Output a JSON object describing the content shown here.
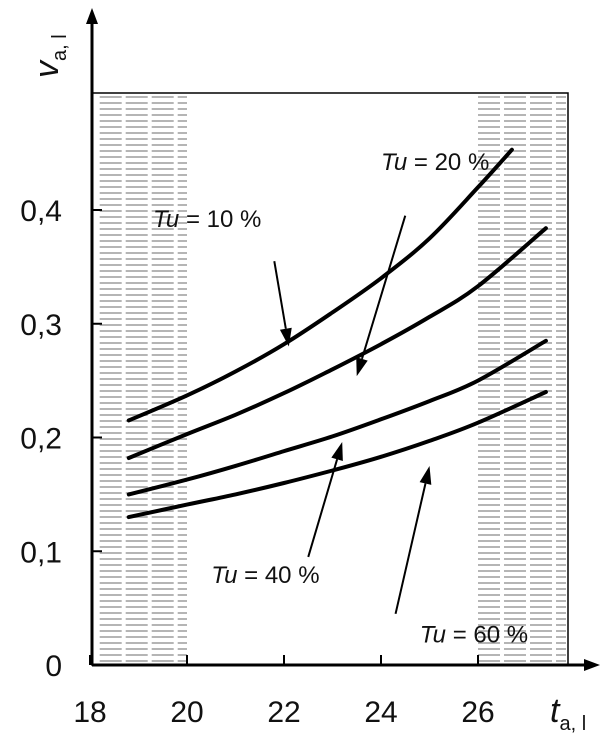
{
  "chart_data": {
    "type": "line",
    "xlabel": "t",
    "xlabel_sub": "a, l",
    "ylabel": "v",
    "ylabel_sub": "a, l",
    "xlim": [
      17.8,
      28.5
    ],
    "ylim": [
      0,
      0.5
    ],
    "x_ticks": [
      18,
      20,
      22,
      24,
      26
    ],
    "x_tick_labels": [
      "18",
      "20",
      "22",
      "24",
      "26"
    ],
    "y_ticks": [
      0,
      0.1,
      0.2,
      0.3,
      0.4
    ],
    "y_tick_labels": [
      "0",
      "0,1",
      "0,2",
      "0,3",
      "0,4"
    ],
    "shaded_bands": [
      [
        18.2,
        20.0
      ],
      [
        26.0,
        28.0
      ]
    ],
    "grid": false,
    "series": [
      {
        "name": "Tu = 10 %",
        "x": [
          18.8,
          20,
          21,
          22,
          23,
          24,
          25,
          26,
          26.7
        ],
        "y": [
          0.215,
          0.237,
          0.258,
          0.282,
          0.31,
          0.34,
          0.375,
          0.42,
          0.453
        ]
      },
      {
        "name": "Tu = 20 %",
        "x": [
          18.8,
          20,
          21,
          22,
          23,
          24,
          25,
          26,
          27.4
        ],
        "y": [
          0.182,
          0.203,
          0.22,
          0.239,
          0.26,
          0.282,
          0.306,
          0.333,
          0.384
        ]
      },
      {
        "name": "Tu = 40 %",
        "x": [
          18.8,
          20,
          21,
          22,
          23,
          24,
          25,
          26,
          27.4
        ],
        "y": [
          0.15,
          0.163,
          0.175,
          0.188,
          0.201,
          0.216,
          0.232,
          0.25,
          0.285
        ]
      },
      {
        "name": "Tu = 60 %",
        "x": [
          18.8,
          20,
          21,
          22,
          23,
          24,
          25,
          26,
          27.4
        ],
        "y": [
          0.13,
          0.141,
          0.15,
          0.16,
          0.171,
          0.183,
          0.197,
          0.213,
          0.24
        ]
      }
    ],
    "annotations": [
      {
        "prefix": "Tu",
        "suffix": " = 10 %",
        "label_x": 19.3,
        "label_y": 0.385,
        "arrow_from": [
          21.8,
          0.355
        ],
        "arrow_to": [
          22.1,
          0.28
        ]
      },
      {
        "prefix": "Tu",
        "suffix": " = 20 %",
        "label_x": 24.0,
        "label_y": 0.435,
        "arrow_from": [
          24.5,
          0.395
        ],
        "arrow_to": [
          23.5,
          0.254
        ]
      },
      {
        "prefix": "Tu",
        "suffix": " = 40 %",
        "label_x": 20.5,
        "label_y": 0.072,
        "arrow_from": [
          22.5,
          0.095
        ],
        "arrow_to": [
          23.2,
          0.196
        ]
      },
      {
        "prefix": "Tu",
        "suffix": " = 60 %",
        "label_x": 24.8,
        "label_y": 0.02,
        "arrow_from": [
          24.3,
          0.045
        ],
        "arrow_to": [
          25.0,
          0.175
        ]
      }
    ]
  }
}
